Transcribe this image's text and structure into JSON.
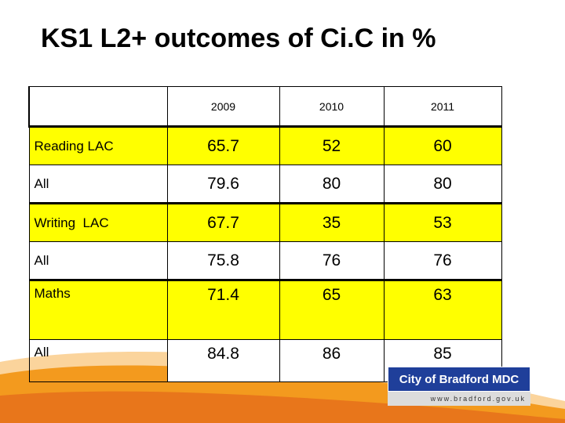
{
  "title": "KS1 L2+ outcomes of Ci.C in %",
  "table": {
    "columns": [
      "",
      "2009",
      "2010",
      "2011"
    ],
    "rows": [
      {
        "label": "Reading LAC",
        "values": [
          "65.7",
          "52",
          "60"
        ]
      },
      {
        "label": "All",
        "values": [
          "79.6",
          "80",
          "80"
        ]
      },
      {
        "label": "Writing  LAC",
        "values": [
          "67.7",
          "35",
          "53"
        ]
      },
      {
        "label": "All",
        "values": [
          "75.8",
          "76",
          "76"
        ]
      },
      {
        "label": "Maths",
        "values": [
          "71.4",
          "65",
          "63"
        ]
      },
      {
        "label": "All",
        "values": [
          "84.8",
          "86",
          "85"
        ]
      }
    ]
  },
  "logo": {
    "name": "City of Bradford MDC",
    "url": "www.bradford.gov.uk"
  },
  "colors": {
    "highlight": "#ffff00",
    "swoosh": "#f39a1e",
    "logo_blue": "#1f3f9a"
  }
}
